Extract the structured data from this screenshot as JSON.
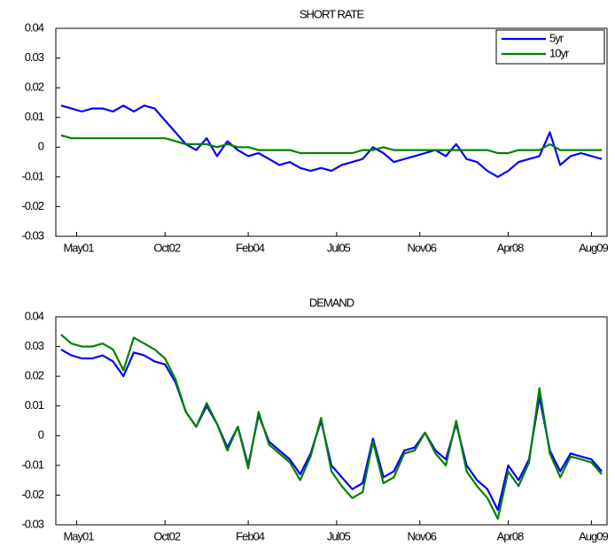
{
  "chart_data": [
    {
      "type": "line",
      "title": "SHORT RATE",
      "x": [
        -3,
        -1,
        1,
        3,
        5,
        7,
        9,
        11,
        13,
        15,
        17,
        19,
        21,
        23,
        25,
        27,
        29,
        31,
        33,
        35,
        37,
        39,
        41,
        43,
        45,
        47,
        49,
        51,
        53,
        55,
        57,
        59,
        61,
        63,
        65,
        67,
        69,
        71,
        73,
        75,
        77,
        79,
        81,
        83,
        85,
        87,
        89,
        91,
        93,
        95,
        97,
        99,
        101
      ],
      "series": [
        {
          "name": "5yr",
          "color": "#0000ff",
          "values": [
            0.014,
            0.013,
            0.012,
            0.013,
            0.013,
            0.012,
            0.014,
            0.012,
            0.014,
            0.013,
            0.009,
            0.005,
            0.001,
            -0.001,
            0.003,
            -0.003,
            0.002,
            -0.001,
            -0.003,
            -0.002,
            -0.004,
            -0.006,
            -0.005,
            -0.007,
            -0.008,
            -0.007,
            -0.008,
            -0.006,
            -0.005,
            -0.004,
            0,
            -0.002,
            -0.005,
            -0.004,
            -0.003,
            -0.002,
            -0.001,
            -0.003,
            0.001,
            -0.004,
            -0.005,
            -0.008,
            -0.01,
            -0.008,
            -0.005,
            -0.004,
            -0.003,
            0.005,
            -0.006,
            -0.003,
            -0.002,
            -0.003,
            -0.004
          ]
        },
        {
          "name": "10yr",
          "color": "#008000",
          "values": [
            0.004,
            0.003,
            0.003,
            0.003,
            0.003,
            0.003,
            0.003,
            0.003,
            0.003,
            0.003,
            0.003,
            0.002,
            0.001,
            0.001,
            0.001,
            0,
            0.001,
            0,
            0,
            -0.001,
            -0.001,
            -0.001,
            -0.001,
            -0.002,
            -0.002,
            -0.002,
            -0.002,
            -0.002,
            -0.002,
            -0.001,
            -0.001,
            0,
            -0.001,
            -0.001,
            -0.001,
            -0.001,
            -0.001,
            -0.001,
            -0.001,
            -0.001,
            -0.001,
            -0.001,
            -0.002,
            -0.002,
            -0.001,
            -0.001,
            -0.001,
            0.001,
            -0.001,
            -0.001,
            -0.001,
            -0.001,
            -0.001
          ]
        }
      ],
      "xlim": [
        -4,
        102
      ],
      "xticks": [
        {
          "value": 0,
          "label": "May01"
        },
        {
          "value": 17,
          "label": "Oct02"
        },
        {
          "value": 33,
          "label": "Feb04"
        },
        {
          "value": 50,
          "label": "Jul05"
        },
        {
          "value": 66,
          "label": "Nov06"
        },
        {
          "value": 83,
          "label": "Apr08"
        },
        {
          "value": 99,
          "label": "Aug09"
        }
      ],
      "ylim": [
        -0.03,
        0.04
      ],
      "yticks": [
        -0.03,
        -0.02,
        -0.01,
        0,
        0.01,
        0.02,
        0.03,
        0.04
      ],
      "legend": "upper right"
    },
    {
      "type": "line",
      "title": "DEMAND",
      "x": [
        -3,
        -1,
        1,
        3,
        5,
        7,
        9,
        11,
        13,
        15,
        17,
        19,
        21,
        23,
        25,
        27,
        29,
        31,
        33,
        35,
        37,
        39,
        41,
        43,
        45,
        47,
        49,
        51,
        53,
        55,
        57,
        59,
        61,
        63,
        65,
        67,
        69,
        71,
        73,
        75,
        77,
        79,
        81,
        83,
        85,
        87,
        89,
        91,
        93,
        95,
        97,
        99,
        101
      ],
      "series": [
        {
          "name": "5yr",
          "color": "#0000ff",
          "values": [
            0.029,
            0.027,
            0.026,
            0.026,
            0.027,
            0.025,
            0.02,
            0.028,
            0.027,
            0.025,
            0.024,
            0.018,
            0.008,
            0.003,
            0.01,
            0.004,
            -0.004,
            0.003,
            -0.01,
            0.007,
            -0.002,
            -0.005,
            -0.008,
            -0.013,
            -0.006,
            0.005,
            -0.01,
            -0.014,
            -0.018,
            -0.016,
            -0.001,
            -0.014,
            -0.012,
            -0.005,
            -0.004,
            0.001,
            -0.005,
            -0.008,
            0.004,
            -0.01,
            -0.015,
            -0.018,
            -0.025,
            -0.01,
            -0.015,
            -0.008,
            0.013,
            -0.005,
            -0.012,
            -0.006,
            -0.007,
            -0.008,
            -0.012
          ]
        },
        {
          "name": "10yr",
          "color": "#008000",
          "values": [
            0.034,
            0.031,
            0.03,
            0.03,
            0.031,
            0.029,
            0.022,
            0.033,
            0.031,
            0.029,
            0.026,
            0.019,
            0.008,
            0.003,
            0.011,
            0.004,
            -0.005,
            0.003,
            -0.011,
            0.008,
            -0.003,
            -0.006,
            -0.009,
            -0.015,
            -0.007,
            0.006,
            -0.012,
            -0.017,
            -0.021,
            -0.019,
            -0.002,
            -0.016,
            -0.014,
            -0.006,
            -0.005,
            0.001,
            -0.006,
            -0.01,
            0.005,
            -0.012,
            -0.017,
            -0.021,
            -0.028,
            -0.012,
            -0.017,
            -0.009,
            0.016,
            -0.006,
            -0.014,
            -0.007,
            -0.008,
            -0.009,
            -0.013
          ]
        }
      ],
      "xlim": [
        -4,
        102
      ],
      "xticks": [
        {
          "value": 0,
          "label": "May01"
        },
        {
          "value": 17,
          "label": "Oct02"
        },
        {
          "value": 33,
          "label": "Feb04"
        },
        {
          "value": 50,
          "label": "Jul05"
        },
        {
          "value": 66,
          "label": "Nov06"
        },
        {
          "value": 83,
          "label": "Apr08"
        },
        {
          "value": 99,
          "label": "Aug09"
        }
      ],
      "ylim": [
        -0.03,
        0.04
      ],
      "yticks": [
        -0.03,
        -0.02,
        -0.01,
        0,
        0.01,
        0.02,
        0.03,
        0.04
      ]
    }
  ]
}
